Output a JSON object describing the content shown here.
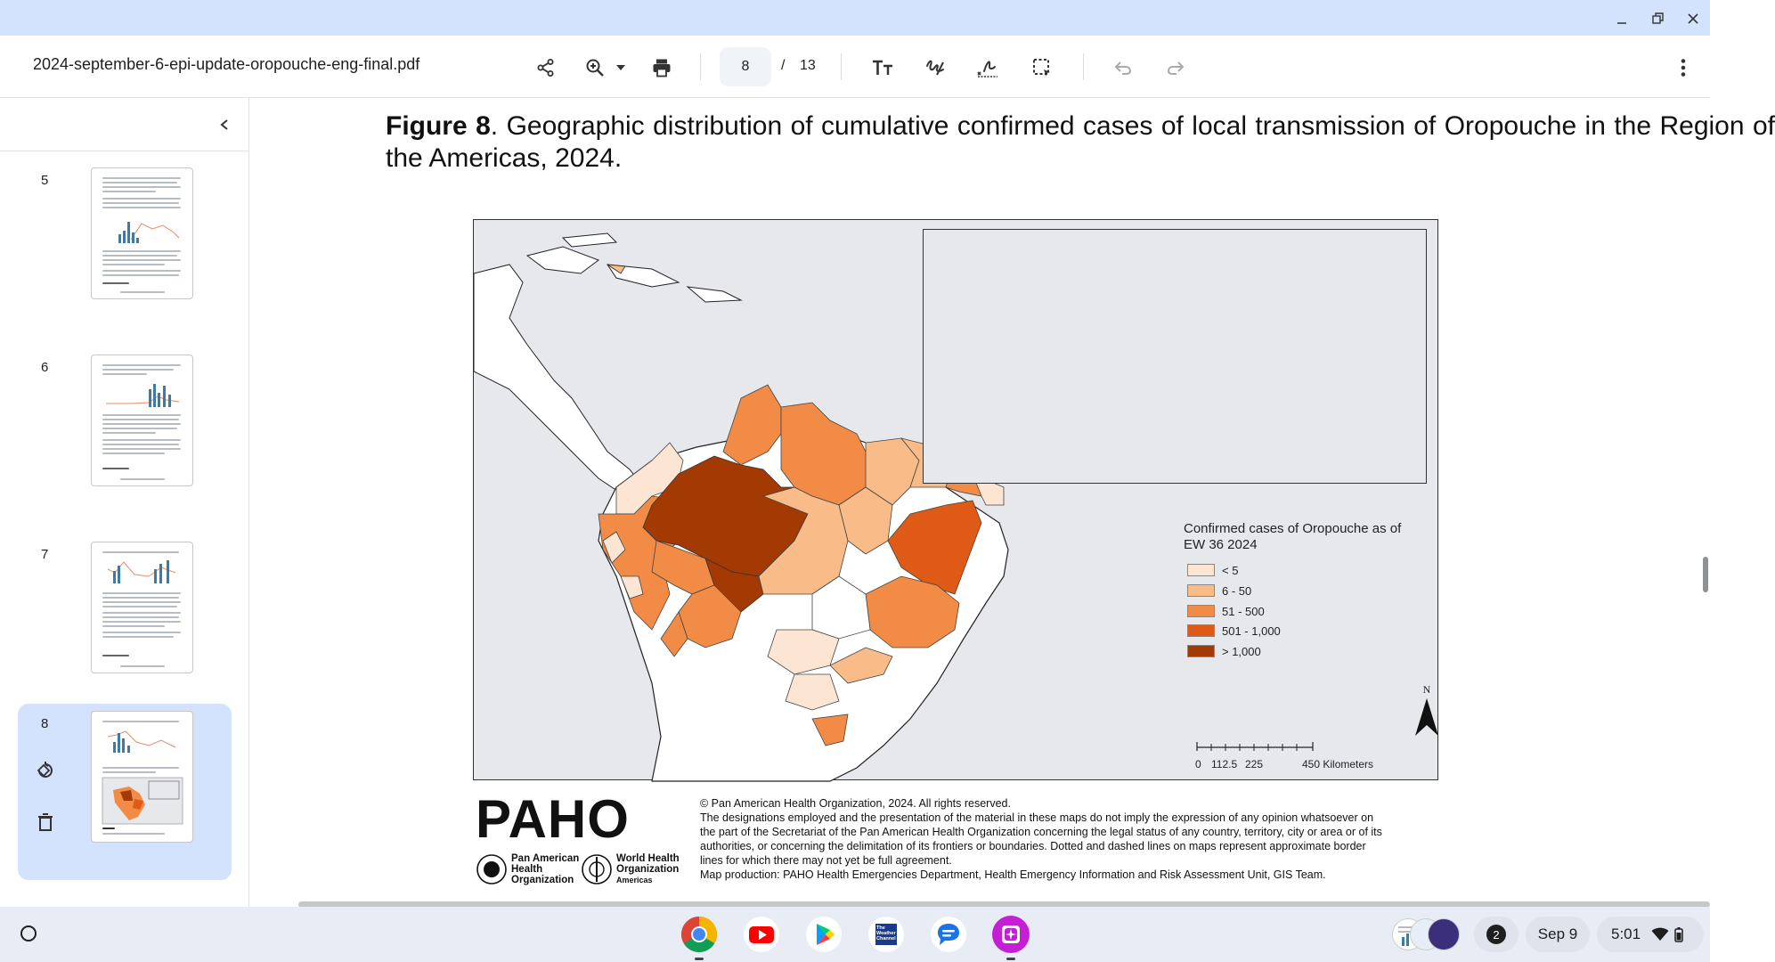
{
  "window": {
    "minimize_icon": "minimize-icon",
    "restore_icon": "restore-icon",
    "close_icon": "close-icon"
  },
  "toolbar": {
    "filename": "2024-september-6-epi-update-oropouche-eng-final.pdf",
    "current_page": "8",
    "page_separator": "/",
    "total_pages": "13",
    "icons": [
      "share-icon",
      "zoom-icon",
      "print-icon",
      "text-icon",
      "draw-icon",
      "signature-icon",
      "select-area-icon",
      "undo-icon",
      "redo-icon",
      "more-icon"
    ]
  },
  "sidebar": {
    "thumbnails": [
      {
        "page": "5"
      },
      {
        "page": "6"
      },
      {
        "page": "7"
      },
      {
        "page": "8",
        "selected": true
      }
    ]
  },
  "document": {
    "figure_label": "Figure 8",
    "figure_title": ". Geographic distribution of cumulative confirmed cases of local transmission of Oropouche in the Region of the Americas, 2024.",
    "legend": {
      "title": "Confirmed cases of Oropouche as of EW 36 2024",
      "items": [
        {
          "label": "< 5",
          "color": "#fde5d4"
        },
        {
          "label": "6 - 50",
          "color": "#f9bb88"
        },
        {
          "label": "51 - 500",
          "color": "#f28b45"
        },
        {
          "label": "501 - 1,000",
          "color": "#de5a16"
        },
        {
          "label": "> 1,000",
          "color": "#a33a04"
        }
      ]
    },
    "north_label": "N",
    "scale": {
      "labels": [
        "0",
        "112.5",
        "225",
        "450 Kilometers"
      ]
    },
    "logo": {
      "wordmark": "PAHO",
      "org1": [
        "Pan American",
        "Health",
        "Organization"
      ],
      "org2": [
        "World Health",
        "Organization"
      ],
      "org2_sub": "Americas"
    },
    "footer_lines": [
      "© Pan American Health Organization, 2024. All rights reserved.",
      "The designations employed and the presentation of the material in these maps do not imply the expression of any opinion whatsoever on",
      "the part of the Secretariat of the Pan American Health Organization concerning the legal status of any country, territory, city or area or of its",
      "authorities, or concerning the delimitation of its frontiers or boundaries. Dotted and dashed lines on maps represent approximate border",
      "lines for which there may not yet be full agreement.",
      "Map production: PAHO Health Emergencies Department, Health Emergency Information and Risk Assessment Unit, GIS Team."
    ]
  },
  "shelf": {
    "apps": [
      "chrome-icon",
      "youtube-icon",
      "play-store-icon",
      "weather-channel-icon",
      "messages-icon",
      "gallery-icon"
    ],
    "weather_app_label": "The Weather Channel",
    "notification_count": "2",
    "date": "Sep 9",
    "time": "5:01"
  }
}
